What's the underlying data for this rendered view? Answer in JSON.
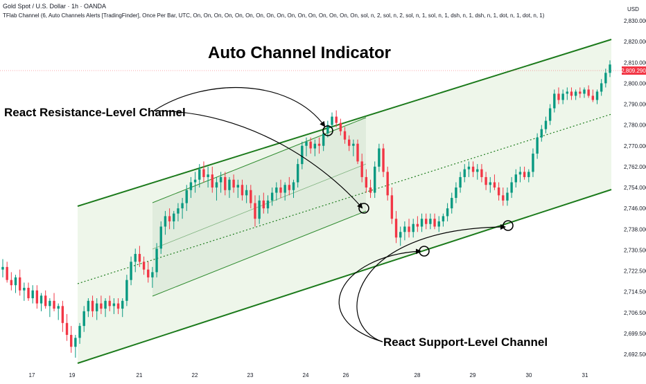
{
  "header": {
    "symbol": "Gold Spot / U.S. Dollar · 1h · OANDA",
    "indicator": "TFlab Channel (6, Auto Channels Alerts [TradingFinder], Once Per Bar, UTC, On, On, On, On, On, On, On, On, On, On, On, On, On, On, On, On, sol, n, 2, sol, n, 2, sol, n, 1, sol, n, 1, dsh, n, 1, dsh, n, 1, dot, n, 1, dot, n, 1)"
  },
  "annotations": {
    "title": "Auto Channel Indicator",
    "resistance_label": "React Resistance-Level Channel",
    "support_label": "React Support-Level Channel"
  },
  "price_axis": {
    "currency": "USD",
    "last_price": "2,809.290",
    "last_price_color": "#f23645"
  },
  "colors": {
    "up": "#089981",
    "down": "#f23645",
    "channel_line": "#1b7a1b",
    "channel_fill": "#e8f3e3",
    "inner_fill": "#d9e6d6"
  },
  "chart_data": {
    "type": "candlestick",
    "y_ticks": [
      "2,830.000",
      "2,820.000",
      "2,810.000",
      "2,800.000",
      "2,790.000",
      "2,780.000",
      "2,770.000",
      "2,762.000",
      "2,754.000",
      "2,746.000",
      "2,738.000",
      "2,730.500",
      "2,722.500",
      "2,714.500",
      "2,706.500",
      "2,699.500",
      "2,692.500"
    ],
    "x_ticks": [
      "17",
      "19",
      "21",
      "22",
      "23",
      "24",
      "26",
      "28",
      "29",
      "30",
      "31"
    ],
    "ylim": [
      2688,
      2834
    ],
    "ohlc": [
      {
        "o": 2723,
        "h": 2727,
        "l": 2720,
        "c": 2724
      },
      {
        "o": 2724,
        "h": 2726,
        "l": 2718,
        "c": 2719
      },
      {
        "o": 2719,
        "h": 2722,
        "l": 2715,
        "c": 2717
      },
      {
        "o": 2717,
        "h": 2721,
        "l": 2714,
        "c": 2720
      },
      {
        "o": 2720,
        "h": 2723,
        "l": 2713,
        "c": 2715
      },
      {
        "o": 2715,
        "h": 2718,
        "l": 2711,
        "c": 2716
      },
      {
        "o": 2716,
        "h": 2718,
        "l": 2711,
        "c": 2712
      },
      {
        "o": 2712,
        "h": 2717,
        "l": 2710,
        "c": 2715
      },
      {
        "o": 2715,
        "h": 2717,
        "l": 2708,
        "c": 2710
      },
      {
        "o": 2710,
        "h": 2714,
        "l": 2707,
        "c": 2713
      },
      {
        "o": 2713,
        "h": 2715,
        "l": 2708,
        "c": 2709
      },
      {
        "o": 2709,
        "h": 2712,
        "l": 2705,
        "c": 2711
      },
      {
        "o": 2711,
        "h": 2714,
        "l": 2707,
        "c": 2708
      },
      {
        "o": 2708,
        "h": 2710,
        "l": 2704,
        "c": 2709
      },
      {
        "o": 2709,
        "h": 2711,
        "l": 2700,
        "c": 2703
      },
      {
        "o": 2703,
        "h": 2706,
        "l": 2697,
        "c": 2699
      },
      {
        "o": 2699,
        "h": 2702,
        "l": 2693,
        "c": 2695
      },
      {
        "o": 2695,
        "h": 2699,
        "l": 2691,
        "c": 2698
      },
      {
        "o": 2698,
        "h": 2703,
        "l": 2696,
        "c": 2702
      },
      {
        "o": 2702,
        "h": 2709,
        "l": 2700,
        "c": 2707
      },
      {
        "o": 2707,
        "h": 2712,
        "l": 2705,
        "c": 2711
      },
      {
        "o": 2711,
        "h": 2713,
        "l": 2705,
        "c": 2707
      },
      {
        "o": 2707,
        "h": 2712,
        "l": 2704,
        "c": 2710
      },
      {
        "o": 2710,
        "h": 2713,
        "l": 2706,
        "c": 2708
      },
      {
        "o": 2708,
        "h": 2712,
        "l": 2705,
        "c": 2711
      },
      {
        "o": 2711,
        "h": 2713,
        "l": 2707,
        "c": 2709
      },
      {
        "o": 2709,
        "h": 2712,
        "l": 2706,
        "c": 2710
      },
      {
        "o": 2710,
        "h": 2712,
        "l": 2706,
        "c": 2708
      },
      {
        "o": 2708,
        "h": 2712,
        "l": 2705,
        "c": 2711
      },
      {
        "o": 2711,
        "h": 2721,
        "l": 2709,
        "c": 2719
      },
      {
        "o": 2719,
        "h": 2728,
        "l": 2717,
        "c": 2726
      },
      {
        "o": 2726,
        "h": 2731,
        "l": 2722,
        "c": 2729
      },
      {
        "o": 2729,
        "h": 2732,
        "l": 2724,
        "c": 2726
      },
      {
        "o": 2726,
        "h": 2728,
        "l": 2721,
        "c": 2723
      },
      {
        "o": 2723,
        "h": 2726,
        "l": 2718,
        "c": 2720
      },
      {
        "o": 2720,
        "h": 2724,
        "l": 2716,
        "c": 2722
      },
      {
        "o": 2722,
        "h": 2733,
        "l": 2720,
        "c": 2731
      },
      {
        "o": 2731,
        "h": 2741,
        "l": 2729,
        "c": 2739
      },
      {
        "o": 2739,
        "h": 2745,
        "l": 2736,
        "c": 2743
      },
      {
        "o": 2743,
        "h": 2746,
        "l": 2738,
        "c": 2741
      },
      {
        "o": 2741,
        "h": 2745,
        "l": 2738,
        "c": 2744
      },
      {
        "o": 2744,
        "h": 2748,
        "l": 2741,
        "c": 2746
      },
      {
        "o": 2746,
        "h": 2750,
        "l": 2742,
        "c": 2748
      },
      {
        "o": 2748,
        "h": 2755,
        "l": 2745,
        "c": 2753
      },
      {
        "o": 2753,
        "h": 2758,
        "l": 2750,
        "c": 2756
      },
      {
        "o": 2756,
        "h": 2760,
        "l": 2752,
        "c": 2757
      },
      {
        "o": 2757,
        "h": 2763,
        "l": 2754,
        "c": 2761
      },
      {
        "o": 2761,
        "h": 2764,
        "l": 2756,
        "c": 2758
      },
      {
        "o": 2758,
        "h": 2762,
        "l": 2754,
        "c": 2759
      },
      {
        "o": 2759,
        "h": 2762,
        "l": 2752,
        "c": 2754
      },
      {
        "o": 2754,
        "h": 2758,
        "l": 2749,
        "c": 2756
      },
      {
        "o": 2756,
        "h": 2760,
        "l": 2752,
        "c": 2758
      },
      {
        "o": 2758,
        "h": 2760,
        "l": 2751,
        "c": 2753
      },
      {
        "o": 2753,
        "h": 2758,
        "l": 2750,
        "c": 2757
      },
      {
        "o": 2757,
        "h": 2759,
        "l": 2752,
        "c": 2754
      },
      {
        "o": 2754,
        "h": 2757,
        "l": 2750,
        "c": 2755
      },
      {
        "o": 2755,
        "h": 2757,
        "l": 2749,
        "c": 2751
      },
      {
        "o": 2751,
        "h": 2755,
        "l": 2748,
        "c": 2753
      },
      {
        "o": 2753,
        "h": 2755,
        "l": 2746,
        "c": 2748
      },
      {
        "o": 2748,
        "h": 2751,
        "l": 2739,
        "c": 2742
      },
      {
        "o": 2742,
        "h": 2751,
        "l": 2740,
        "c": 2749
      },
      {
        "o": 2749,
        "h": 2752,
        "l": 2744,
        "c": 2746
      },
      {
        "o": 2746,
        "h": 2751,
        "l": 2744,
        "c": 2749
      },
      {
        "o": 2749,
        "h": 2754,
        "l": 2747,
        "c": 2752
      },
      {
        "o": 2752,
        "h": 2756,
        "l": 2749,
        "c": 2754
      },
      {
        "o": 2754,
        "h": 2757,
        "l": 2750,
        "c": 2752
      },
      {
        "o": 2752,
        "h": 2756,
        "l": 2749,
        "c": 2755
      },
      {
        "o": 2755,
        "h": 2758,
        "l": 2751,
        "c": 2753
      },
      {
        "o": 2753,
        "h": 2757,
        "l": 2750,
        "c": 2756
      },
      {
        "o": 2756,
        "h": 2765,
        "l": 2754,
        "c": 2763
      },
      {
        "o": 2763,
        "h": 2772,
        "l": 2761,
        "c": 2770
      },
      {
        "o": 2770,
        "h": 2774,
        "l": 2766,
        "c": 2772
      },
      {
        "o": 2772,
        "h": 2774,
        "l": 2767,
        "c": 2769
      },
      {
        "o": 2769,
        "h": 2773,
        "l": 2766,
        "c": 2771
      },
      {
        "o": 2771,
        "h": 2774,
        "l": 2767,
        "c": 2770
      },
      {
        "o": 2770,
        "h": 2778,
        "l": 2768,
        "c": 2776
      },
      {
        "o": 2776,
        "h": 2782,
        "l": 2774,
        "c": 2780
      },
      {
        "o": 2780,
        "h": 2786,
        "l": 2778,
        "c": 2784
      },
      {
        "o": 2784,
        "h": 2787,
        "l": 2779,
        "c": 2781
      },
      {
        "o": 2781,
        "h": 2783,
        "l": 2775,
        "c": 2777
      },
      {
        "o": 2777,
        "h": 2779,
        "l": 2771,
        "c": 2773
      },
      {
        "o": 2773,
        "h": 2775,
        "l": 2768,
        "c": 2770
      },
      {
        "o": 2770,
        "h": 2773,
        "l": 2766,
        "c": 2771
      },
      {
        "o": 2771,
        "h": 2773,
        "l": 2763,
        "c": 2764
      },
      {
        "o": 2764,
        "h": 2767,
        "l": 2756,
        "c": 2758
      },
      {
        "o": 2758,
        "h": 2761,
        "l": 2752,
        "c": 2754
      },
      {
        "o": 2754,
        "h": 2757,
        "l": 2750,
        "c": 2752
      },
      {
        "o": 2752,
        "h": 2764,
        "l": 2750,
        "c": 2762
      },
      {
        "o": 2762,
        "h": 2771,
        "l": 2760,
        "c": 2769
      },
      {
        "o": 2769,
        "h": 2771,
        "l": 2758,
        "c": 2760
      },
      {
        "o": 2760,
        "h": 2762,
        "l": 2749,
        "c": 2751
      },
      {
        "o": 2751,
        "h": 2754,
        "l": 2740,
        "c": 2742
      },
      {
        "o": 2742,
        "h": 2745,
        "l": 2733,
        "c": 2735
      },
      {
        "o": 2735,
        "h": 2739,
        "l": 2732,
        "c": 2737
      },
      {
        "o": 2737,
        "h": 2741,
        "l": 2734,
        "c": 2739
      },
      {
        "o": 2739,
        "h": 2742,
        "l": 2735,
        "c": 2737
      },
      {
        "o": 2737,
        "h": 2742,
        "l": 2735,
        "c": 2740
      },
      {
        "o": 2740,
        "h": 2743,
        "l": 2737,
        "c": 2739
      },
      {
        "o": 2739,
        "h": 2744,
        "l": 2737,
        "c": 2742
      },
      {
        "o": 2742,
        "h": 2744,
        "l": 2738,
        "c": 2740
      },
      {
        "o": 2740,
        "h": 2744,
        "l": 2738,
        "c": 2742
      },
      {
        "o": 2742,
        "h": 2744,
        "l": 2738,
        "c": 2739
      },
      {
        "o": 2739,
        "h": 2743,
        "l": 2737,
        "c": 2741
      },
      {
        "o": 2741,
        "h": 2744,
        "l": 2739,
        "c": 2743
      },
      {
        "o": 2743,
        "h": 2748,
        "l": 2741,
        "c": 2746
      },
      {
        "o": 2746,
        "h": 2752,
        "l": 2744,
        "c": 2750
      },
      {
        "o": 2750,
        "h": 2756,
        "l": 2748,
        "c": 2754
      },
      {
        "o": 2754,
        "h": 2760,
        "l": 2752,
        "c": 2758
      },
      {
        "o": 2758,
        "h": 2763,
        "l": 2756,
        "c": 2761
      },
      {
        "o": 2761,
        "h": 2764,
        "l": 2758,
        "c": 2762
      },
      {
        "o": 2762,
        "h": 2764,
        "l": 2758,
        "c": 2760
      },
      {
        "o": 2760,
        "h": 2763,
        "l": 2757,
        "c": 2761
      },
      {
        "o": 2761,
        "h": 2763,
        "l": 2756,
        "c": 2758
      },
      {
        "o": 2758,
        "h": 2760,
        "l": 2753,
        "c": 2755
      },
      {
        "o": 2755,
        "h": 2758,
        "l": 2752,
        "c": 2756
      },
      {
        "o": 2756,
        "h": 2759,
        "l": 2753,
        "c": 2754
      },
      {
        "o": 2754,
        "h": 2756,
        "l": 2749,
        "c": 2751
      },
      {
        "o": 2751,
        "h": 2754,
        "l": 2747,
        "c": 2749
      },
      {
        "o": 2749,
        "h": 2754,
        "l": 2747,
        "c": 2752
      },
      {
        "o": 2752,
        "h": 2758,
        "l": 2750,
        "c": 2756
      },
      {
        "o": 2756,
        "h": 2761,
        "l": 2754,
        "c": 2759
      },
      {
        "o": 2759,
        "h": 2762,
        "l": 2756,
        "c": 2760
      },
      {
        "o": 2760,
        "h": 2762,
        "l": 2757,
        "c": 2758
      },
      {
        "o": 2758,
        "h": 2761,
        "l": 2756,
        "c": 2760
      },
      {
        "o": 2760,
        "h": 2769,
        "l": 2758,
        "c": 2767
      },
      {
        "o": 2767,
        "h": 2776,
        "l": 2765,
        "c": 2774
      },
      {
        "o": 2774,
        "h": 2780,
        "l": 2772,
        "c": 2778
      },
      {
        "o": 2778,
        "h": 2784,
        "l": 2776,
        "c": 2782
      },
      {
        "o": 2782,
        "h": 2790,
        "l": 2780,
        "c": 2788
      },
      {
        "o": 2788,
        "h": 2797,
        "l": 2786,
        "c": 2795
      },
      {
        "o": 2795,
        "h": 2798,
        "l": 2790,
        "c": 2792
      },
      {
        "o": 2792,
        "h": 2797,
        "l": 2790,
        "c": 2795
      },
      {
        "o": 2795,
        "h": 2798,
        "l": 2792,
        "c": 2796
      },
      {
        "o": 2796,
        "h": 2798,
        "l": 2792,
        "c": 2794
      },
      {
        "o": 2794,
        "h": 2797,
        "l": 2792,
        "c": 2796
      },
      {
        "o": 2796,
        "h": 2798,
        "l": 2793,
        "c": 2795
      },
      {
        "o": 2795,
        "h": 2798,
        "l": 2793,
        "c": 2797
      },
      {
        "o": 2797,
        "h": 2799,
        "l": 2793,
        "c": 2794
      },
      {
        "o": 2794,
        "h": 2797,
        "l": 2791,
        "c": 2792
      },
      {
        "o": 2792,
        "h": 2797,
        "l": 2790,
        "c": 2796
      },
      {
        "o": 2796,
        "h": 2802,
        "l": 2794,
        "c": 2800
      },
      {
        "o": 2800,
        "h": 2807,
        "l": 2798,
        "c": 2805
      },
      {
        "o": 2805,
        "h": 2811,
        "l": 2803,
        "c": 2809
      }
    ]
  }
}
